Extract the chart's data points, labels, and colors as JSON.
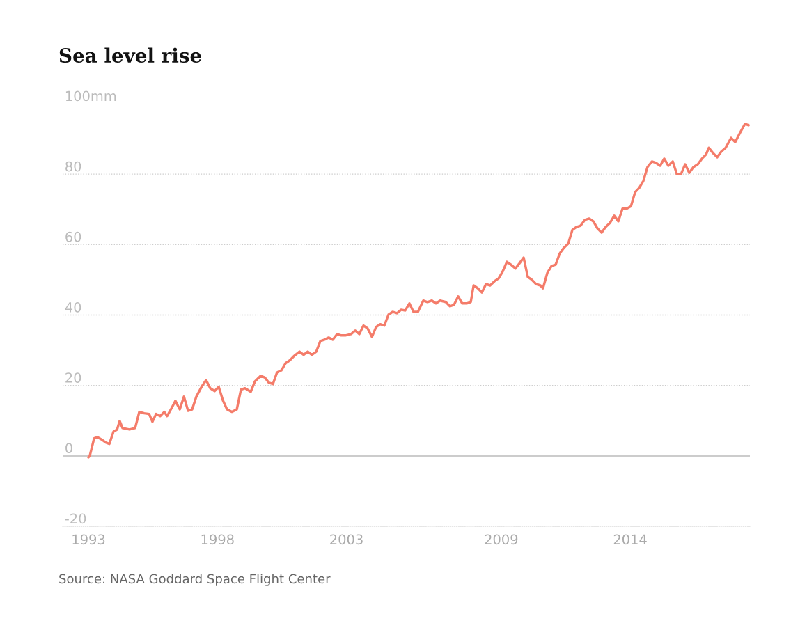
{
  "chart_data": {
    "type": "line",
    "title": "Sea level rise",
    "annotations": [
      "Source: NASA Goddard Space Flight Center"
    ],
    "x": [
      1993.0,
      1993.05,
      1993.22,
      1993.35,
      1993.54,
      1993.67,
      1993.81,
      1993.97,
      1994.11,
      1994.21,
      1994.32,
      1994.59,
      1994.81,
      1994.97,
      1995.16,
      1995.35,
      1995.48,
      1995.62,
      1995.78,
      1995.94,
      1996.05,
      1996.24,
      1996.37,
      1996.54,
      1996.7,
      1996.86,
      1997.02,
      1997.18,
      1997.4,
      1997.56,
      1997.72,
      1997.89,
      1998.05,
      1998.21,
      1998.37,
      1998.56,
      1998.75,
      1998.91,
      1999.07,
      1999.29,
      1999.45,
      1999.67,
      1999.83,
      1999.99,
      2000.15,
      2000.31,
      2000.48,
      2000.64,
      2000.8,
      2000.96,
      2001.18,
      2001.34,
      2001.5,
      2001.66,
      2001.83,
      2001.99,
      2002.15,
      2002.31,
      2002.47,
      2002.64,
      2002.8,
      2002.96,
      2003.18,
      2003.34,
      2003.5,
      2003.66,
      2003.82,
      2003.99,
      2004.15,
      2004.31,
      2004.47,
      2004.63,
      2004.79,
      2004.96,
      2005.12,
      2005.28,
      2005.44,
      2005.6,
      2005.77,
      2005.98,
      2006.14,
      2006.31,
      2006.47,
      2006.63,
      2006.85,
      2007.01,
      2007.17,
      2007.33,
      2007.49,
      2007.66,
      2007.82,
      2007.93,
      2008.09,
      2008.25,
      2008.41,
      2008.57,
      2008.74,
      2008.9,
      2009.06,
      2009.22,
      2009.38,
      2009.55,
      2009.71,
      2009.87,
      2010.03,
      2010.19,
      2010.35,
      2010.52,
      2010.62,
      2010.79,
      2010.95,
      2011.11,
      2011.27,
      2011.43,
      2011.6,
      2011.76,
      2011.92,
      2012.08,
      2012.24,
      2012.41,
      2012.57,
      2012.73,
      2012.89,
      2013.05,
      2013.22,
      2013.38,
      2013.54,
      2013.7,
      2013.86,
      2014.03,
      2014.19,
      2014.35,
      2014.51,
      2014.67,
      2014.84,
      2015.0,
      2015.16,
      2015.32,
      2015.48,
      2015.65,
      2015.81,
      2015.97,
      2016.13,
      2016.29,
      2016.45,
      2016.62,
      2016.78,
      2016.94,
      2017.05,
      2017.21,
      2017.37,
      2017.53,
      2017.7,
      2017.91,
      2018.07,
      2018.24,
      2018.45,
      2018.59
    ],
    "series": [
      {
        "color": "#f47c6a",
        "values": [
          -0.4,
          0,
          5,
          5.3,
          4.5,
          3.8,
          3.4,
          6.9,
          7.5,
          9.9,
          7.9,
          7.5,
          7.9,
          12.5,
          12.1,
          11.9,
          9.7,
          11.9,
          11.3,
          12.5,
          11.3,
          13.8,
          15.6,
          13.2,
          16.8,
          12.8,
          13.2,
          16.8,
          19.8,
          21.5,
          19.2,
          18.4,
          19.6,
          15.8,
          13.2,
          12.5,
          13.2,
          18.8,
          19.2,
          18.2,
          21.1,
          22.7,
          22.3,
          20.8,
          20.4,
          23.7,
          24.3,
          26.3,
          27.1,
          28.3,
          29.6,
          28.7,
          29.6,
          28.7,
          29.6,
          32.6,
          33.0,
          33.6,
          33.0,
          34.6,
          34.2,
          34.2,
          34.6,
          35.6,
          34.6,
          37.0,
          36.2,
          33.8,
          36.6,
          37.4,
          37.0,
          40.1,
          40.9,
          40.5,
          41.5,
          41.3,
          43.3,
          40.9,
          40.9,
          44.1,
          43.7,
          44.1,
          43.3,
          44.1,
          43.7,
          42.5,
          42.9,
          45.3,
          43.3,
          43.3,
          43.7,
          48.4,
          47.6,
          46.4,
          48.8,
          48.4,
          49.6,
          50.4,
          52.4,
          55.1,
          54.3,
          53.2,
          54.7,
          56.3,
          50.8,
          50.0,
          48.8,
          48.4,
          47.6,
          52.0,
          53.9,
          54.3,
          57.5,
          59.1,
          60.3,
          64.2,
          65.0,
          65.4,
          67.0,
          67.4,
          66.6,
          64.6,
          63.4,
          65.0,
          66.2,
          68.2,
          66.6,
          70.2,
          70.2,
          70.9,
          74.9,
          76.1,
          78.1,
          82.0,
          83.6,
          83.2,
          82.4,
          84.4,
          82.4,
          83.6,
          80.0,
          80.0,
          82.8,
          80.4,
          82.0,
          82.8,
          84.4,
          85.6,
          87.5,
          86.0,
          84.8,
          86.4,
          87.5,
          90.3,
          89.1,
          91.5,
          94.3,
          93.9
        ]
      }
    ],
    "xlim": [
      1992.0,
      2018.64
    ],
    "xticks": [
      1993,
      1998,
      2003,
      2009,
      2014
    ],
    "ylim": [
      -20,
      100
    ],
    "yticks": [
      -20,
      0,
      20,
      40,
      60,
      80,
      {
        "value": 100,
        "label": "100mm"
      }
    ],
    "ref_lines": [
      {
        "axis": "y",
        "value": 0,
        "color": "#cccccc",
        "line_style": "solid"
      }
    ],
    "grid": "y",
    "legend": false
  }
}
